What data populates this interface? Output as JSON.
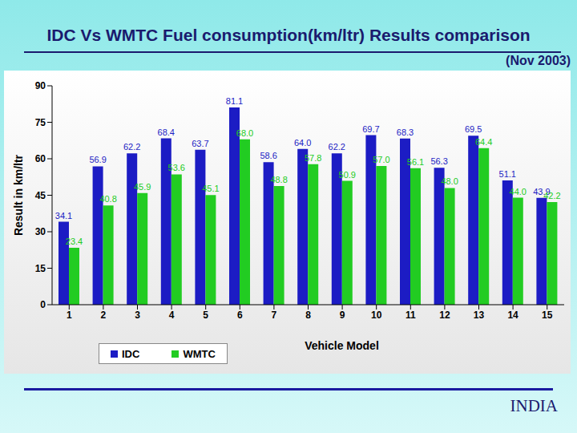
{
  "chart_data": {
    "type": "bar",
    "title": "IDC Vs WMTC Fuel consumption(km/ltr) Results comparison",
    "subtitle": "(Nov 2003)",
    "annotation": "INDIA",
    "x_label": "Vehicle Model",
    "y_label": "Result in km/ltr",
    "categories": [
      "1",
      "2",
      "3",
      "4",
      "5",
      "6",
      "7",
      "8",
      "9",
      "10",
      "11",
      "12",
      "13",
      "14",
      "15"
    ],
    "series": [
      {
        "name": "IDC",
        "color": "#1c1cc4",
        "values": [
          34.1,
          56.9,
          62.2,
          68.4,
          63.7,
          81.1,
          58.6,
          64.0,
          62.2,
          69.7,
          68.3,
          56.3,
          69.5,
          51.1,
          43.9
        ],
        "value_labels": [
          "34.1",
          "56.9",
          "62.2",
          "68.4",
          "63.7",
          "81.1",
          "58.6",
          "64.0",
          "62.2",
          "69.7",
          "68.3",
          "56.3",
          "69.5",
          "51.1",
          "43.9"
        ]
      },
      {
        "name": "WMTC",
        "color": "#22cc22",
        "values": [
          23.4,
          40.8,
          45.9,
          53.6,
          45.1,
          68.0,
          48.8,
          57.8,
          50.9,
          57.0,
          56.1,
          48.0,
          64.4,
          44.0,
          42.2
        ],
        "value_labels": [
          "23.4",
          "40.8",
          "45.9",
          "53.6",
          "45.1",
          "68.0",
          "48.8",
          "57.8",
          "50.9",
          "57.0",
          "56.1",
          "48.0",
          "64.4",
          "44.0",
          "42.2"
        ]
      }
    ],
    "ylim": [
      0,
      90
    ],
    "yticks": [
      0,
      15,
      30,
      45,
      60,
      75,
      90
    ],
    "grid": false,
    "legend": "bottom left",
    "data_labels": true
  }
}
